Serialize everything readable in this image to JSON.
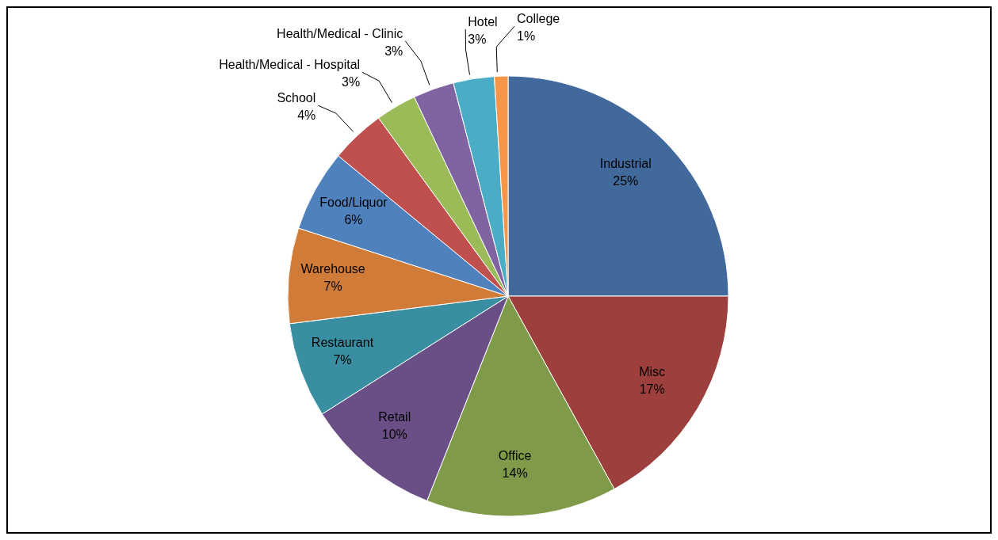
{
  "chart_data": {
    "type": "pie",
    "categories": [
      "Industrial",
      "Misc",
      "Office",
      "Retail",
      "Restaurant",
      "Warehouse",
      "Food/Liquor",
      "School",
      "Health/Medical - Hospital",
      "Health/Medical - Clinic",
      "Hotel",
      "College"
    ],
    "values": [
      25,
      17,
      14,
      10,
      7,
      7,
      6,
      4,
      3,
      3,
      3,
      1
    ],
    "value_labels": [
      "25%",
      "17%",
      "14%",
      "10%",
      "7%",
      "7%",
      "6%",
      "4%",
      "3%",
      "3%",
      "3%",
      "1%"
    ],
    "colors": [
      "#41699c",
      "#9c3f3d",
      "#7f9b49",
      "#6a4f87",
      "#3a8ea2",
      "#d07c38",
      "#4f81bd",
      "#c0504d",
      "#9bbb59",
      "#8064a2",
      "#4bacc6",
      "#f79646"
    ],
    "legend": false
  }
}
